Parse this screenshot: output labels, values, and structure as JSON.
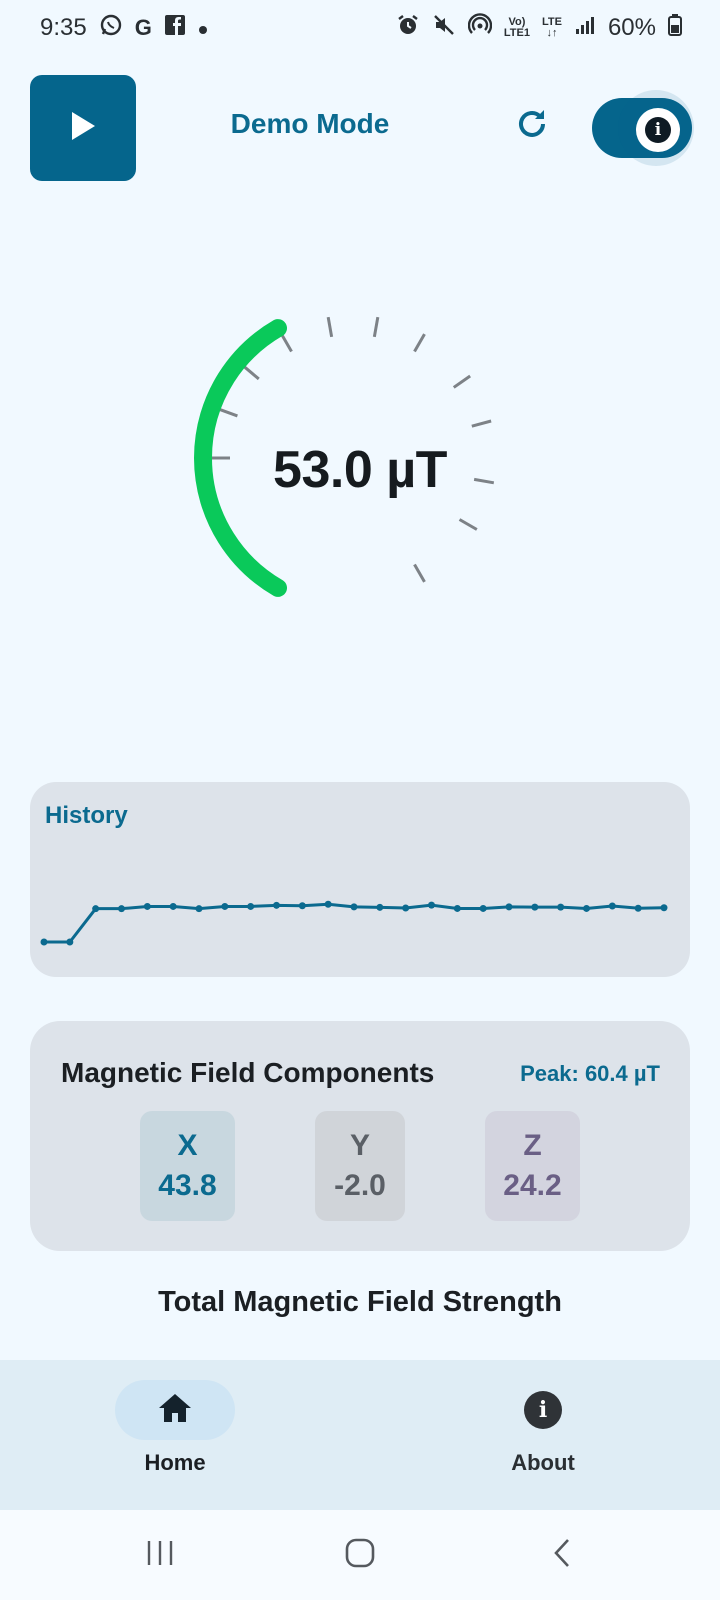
{
  "status_bar": {
    "time": "9:35",
    "left_icons": [
      "whatsapp-icon",
      "google-icon",
      "facebook-icon",
      "dot-icon"
    ],
    "right_icons": [
      "alarm-icon",
      "mute-icon",
      "hotspot-icon",
      "volte-icon",
      "lte-icon",
      "signal-icon"
    ],
    "volte_top": "Vo)",
    "volte_bottom": "LTE1",
    "lte_label": "LTE",
    "battery": "60%"
  },
  "header": {
    "title": "Demo Mode",
    "play_icon": "play-icon",
    "refresh_icon": "refresh-icon",
    "toggle_on": true,
    "toggle_icon": "info-icon",
    "toggle_glyph": "i",
    "accent": "#05658c"
  },
  "gauge": {
    "value_text": "53.0 µT",
    "arc_color": "#0ac95a",
    "arc_fraction": 0.25
  },
  "history": {
    "title": "History",
    "line_color": "#0b6a8f",
    "values": [
      38,
      38,
      53,
      53,
      54,
      54,
      53,
      54,
      54,
      54.5,
      54.3,
      55,
      53.8,
      53.6,
      53.3,
      54.6,
      53.1,
      53.1,
      53.8,
      53.7,
      53.7,
      53.1,
      54.2,
      53.2,
      53.4
    ]
  },
  "components": {
    "title": "Magnetic Field Components",
    "peak": "Peak: 60.4 µT",
    "x": {
      "label": "X",
      "value": "43.8"
    },
    "y": {
      "label": "Y",
      "value": "-2.0"
    },
    "z": {
      "label": "Z",
      "value": "24.2"
    }
  },
  "total_label": "Total Magnetic Field Strength",
  "bottom_nav": {
    "items": [
      {
        "label": "Home",
        "icon": "home-icon",
        "active": true
      },
      {
        "label": "About",
        "icon": "info-icon",
        "active": false
      }
    ],
    "about_glyph": "i"
  },
  "system_nav": [
    "recents-icon",
    "home-circle-icon",
    "back-icon"
  ]
}
